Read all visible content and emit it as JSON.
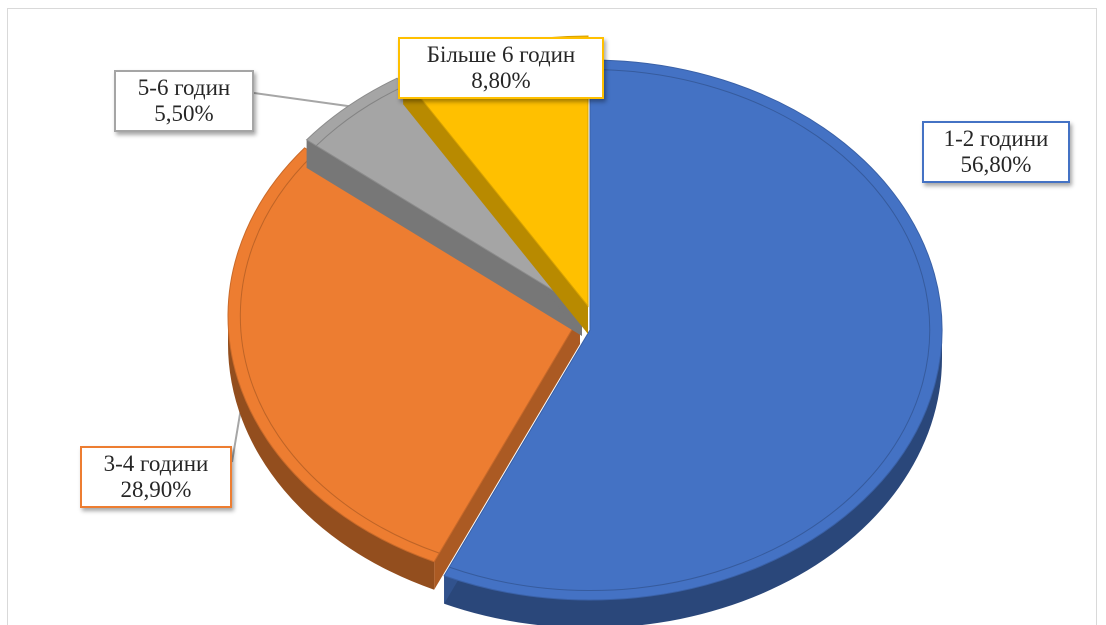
{
  "chart_data": {
    "type": "pie",
    "variant": "3d",
    "title": "",
    "categories": [
      "1-2 години",
      "3-4 години",
      "5-6 годин",
      "Більше 6 годин"
    ],
    "values": [
      56.8,
      28.9,
      5.5,
      8.8
    ],
    "value_labels": [
      "56,80%",
      "28,90%",
      "5,50%",
      "8,80%"
    ],
    "colors": [
      "#4472c4",
      "#ed7d31",
      "#a5a5a5",
      "#ffc000"
    ],
    "exploded": [
      "3-4 години",
      "5-6 годин",
      "Більше 6 годин"
    ],
    "legend": "none"
  }
}
